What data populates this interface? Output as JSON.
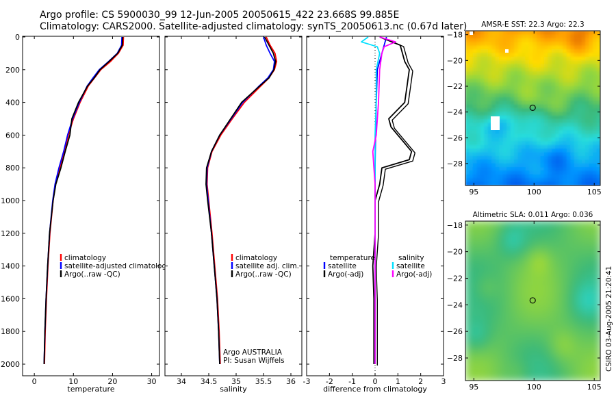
{
  "header": {
    "line1": "Argo profile: CS 5900030_99 12-Jun-2005 20050615_422 23.668S 99.885E",
    "line2": "Climatology: CARS2000. Satellite-adjusted climatology: synTS_20050613.nc (0.67d later)"
  },
  "side_label": "CSIRO 03-Aug-2005 21:20:41",
  "chart_data": [
    {
      "type": "line",
      "xlabel": "temperature",
      "ylabel": "",
      "xlim": [
        -3,
        32
      ],
      "ylim": [
        2050,
        0
      ],
      "xticks": [
        0,
        10,
        20,
        30
      ],
      "yticks": [
        0,
        200,
        400,
        600,
        800,
        1000,
        1200,
        1400,
        1600,
        1800,
        2000
      ],
      "legend": {
        "placement": "center-right",
        "entries": [
          "climatology",
          "satellite-adjusted climatology",
          "Argo(..raw -QC)"
        ]
      },
      "series": [
        {
          "name": "climatology",
          "color": "#ff0000",
          "depth": [
            0,
            50,
            100,
            150,
            200,
            250,
            300,
            400,
            500,
            600,
            700,
            800,
            900,
            1000,
            1200,
            1400,
            1600,
            1800,
            2000
          ],
          "values": [
            22.8,
            22.7,
            21.5,
            19.5,
            17.0,
            15.4,
            13.8,
            11.7,
            10.0,
            8.7,
            7.7,
            6.5,
            5.4,
            4.8,
            4.0,
            3.5,
            3.1,
            2.8,
            2.6
          ]
        },
        {
          "name": "satellite-adjusted climatology",
          "color": "#0000ff",
          "depth": [
            0,
            50,
            100,
            150,
            200,
            250,
            300,
            400,
            500,
            600,
            700,
            800,
            900,
            1000,
            1200,
            1400,
            1600,
            1800,
            2000
          ],
          "values": [
            22.4,
            22.3,
            21.2,
            19.0,
            16.6,
            15.0,
            13.5,
            11.5,
            9.8,
            8.5,
            7.5,
            6.3,
            5.3,
            4.7,
            3.9,
            3.4,
            3.0,
            2.7,
            2.5
          ]
        },
        {
          "name": "Argo(..raw -QC)",
          "color": "#000000",
          "depth": [
            0,
            50,
            100,
            150,
            200,
            250,
            300,
            400,
            500,
            600,
            700,
            800,
            900,
            1000,
            1200,
            1400,
            1600,
            1800,
            2000
          ],
          "values": [
            22.6,
            22.5,
            21.3,
            19.1,
            16.8,
            15.3,
            13.6,
            11.3,
            9.6,
            9.1,
            7.9,
            6.8,
            5.5,
            4.8,
            3.9,
            3.4,
            3.0,
            2.7,
            2.5
          ]
        }
      ]
    },
    {
      "type": "line",
      "xlabel": "salinity",
      "xlim": [
        33.7,
        36.2
      ],
      "ylim": [
        2050,
        0
      ],
      "xticks": [
        34,
        34.5,
        35,
        35.5,
        36
      ],
      "legend": {
        "placement": "center-right",
        "entries": [
          "climatology",
          "satellite adj. clim.",
          "Argo(..raw -QC)"
        ]
      },
      "annotation": [
        "Argo AUSTRALIA",
        "PI: Susan Wijffels"
      ],
      "series": [
        {
          "name": "climatology",
          "color": "#ff0000",
          "depth": [
            0,
            50,
            100,
            150,
            200,
            250,
            300,
            400,
            500,
            600,
            700,
            800,
            900,
            1000,
            1200,
            1400,
            1600,
            1800,
            2000
          ],
          "values": [
            35.55,
            35.62,
            35.71,
            35.74,
            35.7,
            35.6,
            35.45,
            35.15,
            34.93,
            34.72,
            34.56,
            34.48,
            34.47,
            34.5,
            34.56,
            34.61,
            34.66,
            34.69,
            34.71
          ]
        },
        {
          "name": "satellite adj. clim.",
          "color": "#0000ff",
          "depth": [
            0,
            50,
            100,
            150,
            200,
            250,
            300,
            400,
            500,
            600,
            700,
            800,
            900,
            1000,
            1200,
            1400,
            1600,
            1800,
            2000
          ],
          "values": [
            35.5,
            35.55,
            35.62,
            35.7,
            35.68,
            35.58,
            35.42,
            35.12,
            34.91,
            34.7,
            34.55,
            34.47,
            34.46,
            34.49,
            34.55,
            34.6,
            34.65,
            34.68,
            34.7
          ]
        },
        {
          "name": "Argo(..raw -QC)",
          "color": "#000000",
          "depth": [
            0,
            50,
            100,
            150,
            200,
            250,
            300,
            400,
            500,
            600,
            700,
            800,
            900,
            1000,
            1200,
            1400,
            1600,
            1800,
            2000
          ],
          "values": [
            35.52,
            35.6,
            35.68,
            35.72,
            35.69,
            35.6,
            35.43,
            35.1,
            34.9,
            34.7,
            34.55,
            34.46,
            34.45,
            34.48,
            34.55,
            34.6,
            34.65,
            34.68,
            34.7
          ]
        }
      ]
    },
    {
      "type": "line",
      "xlabel": "difference from climatology",
      "xlim": [
        -3,
        3
      ],
      "ylim": [
        2050,
        0
      ],
      "xticks": [
        -3,
        -2,
        -1,
        0,
        1,
        2,
        3
      ],
      "legend": {
        "placement": "center",
        "entries": [
          "temperature",
          "satellite",
          "Argo(-adj)",
          "salinity",
          "satellite",
          "Argo(-adj)"
        ]
      },
      "series": [
        {
          "name": "temperature satellite",
          "color": "#0000ff",
          "depth": [
            0,
            50,
            100,
            200,
            400,
            600,
            800,
            1000,
            1400,
            2000
          ],
          "values": [
            0.5,
            0.4,
            0.3,
            0.1,
            0.05,
            0.02,
            0.0,
            0.0,
            0.0,
            0.0
          ]
        },
        {
          "name": "temperature Argo(-adj)",
          "color": "#000000",
          "depth": [
            0,
            50,
            100,
            150,
            200,
            300,
            400,
            500,
            550,
            600,
            650,
            700,
            750,
            800,
            900,
            1000,
            1200,
            1400,
            1600,
            1800,
            2000
          ],
          "values": [
            0.2,
            1.1,
            1.2,
            1.3,
            1.5,
            1.4,
            1.3,
            0.6,
            0.7,
            1.0,
            1.3,
            1.6,
            1.5,
            0.3,
            0.2,
            0.0,
            0.0,
            -0.1,
            -0.05,
            -0.05,
            -0.05
          ]
        },
        {
          "name": "salinity satellite",
          "color": "#00e0ff",
          "depth": [
            0,
            30,
            60,
            100,
            200,
            400,
            600,
            800,
            1000,
            1400,
            2000
          ],
          "values": [
            -0.3,
            -0.6,
            0.1,
            0.2,
            0.05,
            0.05,
            0.0,
            0.0,
            0.0,
            0.0,
            0.0
          ]
        },
        {
          "name": "salinity Argo(-adj)",
          "color": "#ff00ff",
          "depth": [
            0,
            30,
            60,
            100,
            200,
            400,
            600,
            700,
            800,
            900,
            1000,
            1400,
            2000
          ],
          "values": [
            0.2,
            0.9,
            0.4,
            0.3,
            0.2,
            0.15,
            0.05,
            -0.1,
            -0.05,
            0.0,
            0.0,
            0.0,
            0.0
          ]
        }
      ]
    },
    {
      "type": "heatmap",
      "title": "AMSR-E SST: 22.3 Argo: 22.3",
      "xlim": [
        94.3,
        105.5
      ],
      "ylim": [
        -29.7,
        -17.7
      ],
      "xticks": [
        95,
        100,
        105
      ],
      "yticks": [
        -18,
        -20,
        -22,
        -24,
        -26,
        -28
      ],
      "marker": {
        "lon": 99.885,
        "lat": -23.668
      }
    },
    {
      "type": "heatmap",
      "title": "Altimetric SLA: 0.011 Argo: 0.036",
      "xlim": [
        94.3,
        105.5
      ],
      "ylim": [
        -29.7,
        -17.7
      ],
      "xticks": [
        95,
        100,
        105
      ],
      "yticks": [
        -18,
        -20,
        -22,
        -24,
        -26,
        -28
      ],
      "marker": {
        "lon": 99.885,
        "lat": -23.668
      }
    }
  ]
}
